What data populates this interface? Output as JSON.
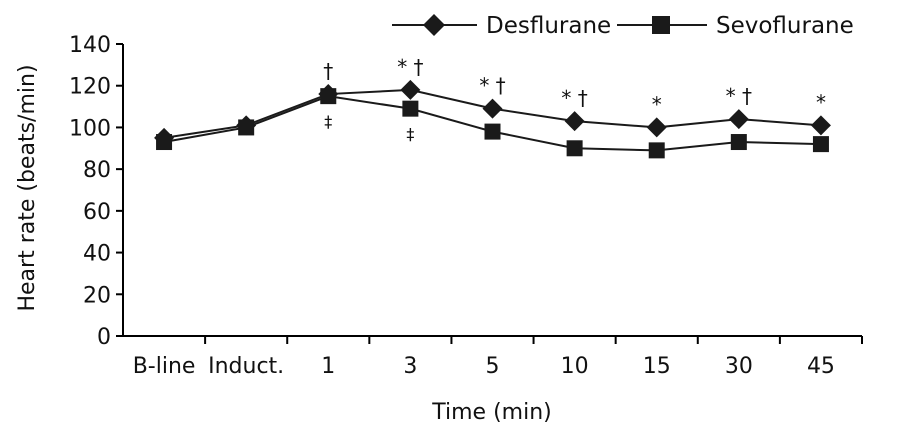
{
  "chart_data": {
    "type": "line",
    "categories": [
      "B-line",
      "Induct.",
      "1",
      "3",
      "5",
      "10",
      "15",
      "30",
      "45"
    ],
    "xlabel": "Time (min)",
    "ylabel": "Heart rate (beats/min)",
    "ylim": [
      0,
      140
    ],
    "yticks": [
      0,
      20,
      40,
      60,
      80,
      100,
      120,
      140
    ],
    "grid": false,
    "legend_position": "top-right",
    "series": [
      {
        "name": "Desflurane",
        "marker": "diamond",
        "values": [
          95,
          101,
          116,
          118,
          109,
          103,
          100,
          104,
          101
        ]
      },
      {
        "name": "Sevoflurane",
        "marker": "square",
        "values": [
          93,
          100,
          115,
          109,
          98,
          90,
          89,
          93,
          92
        ]
      }
    ],
    "annotations": [
      {
        "category": "1",
        "text": "†",
        "placement": "above"
      },
      {
        "category": "1",
        "text": "‡",
        "placement": "below"
      },
      {
        "category": "3",
        "text": "* †",
        "placement": "above"
      },
      {
        "category": "3",
        "text": "‡",
        "placement": "below"
      },
      {
        "category": "5",
        "text": "* †",
        "placement": "above"
      },
      {
        "category": "10",
        "text": "* †",
        "placement": "above"
      },
      {
        "category": "15",
        "text": "*",
        "placement": "above"
      },
      {
        "category": "30",
        "text": "* †",
        "placement": "above"
      },
      {
        "category": "45",
        "text": "*",
        "placement": "above"
      }
    ]
  }
}
